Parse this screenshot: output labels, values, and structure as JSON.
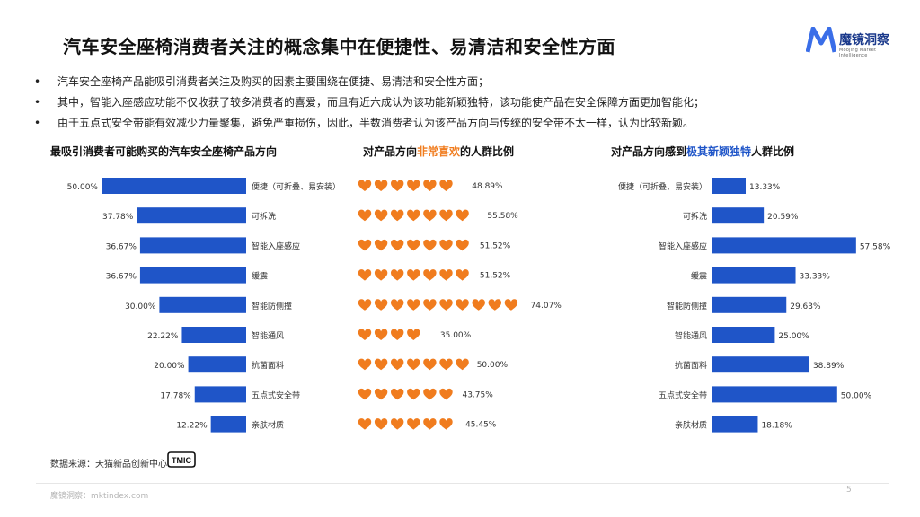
{
  "title": "汽车安全座椅消费者关注的概念集中在便捷性、易清洁和安全性方面",
  "logo": {
    "brand": "魔镜洞察",
    "sub": "Moojing Market Intelligence"
  },
  "bullets": [
    "汽车安全座椅产品能吸引消费者关注及购买的因素主要围绕在便捷、易清洁和安全性方面；",
    "其中，智能入座感应功能不仅收获了较多消费者的喜爱，而且有近六成认为该功能新颖独特，该功能使产品在安全保障方面更加智能化；",
    "由于五点式安全带能有效减少力量聚集，避免严重损伤，因此，半数消费者认为该产品方向与传统的安全带不太一样，认为比较新颖。"
  ],
  "bullet_marker": "•",
  "colors": {
    "bar": "#1f55c8",
    "heart": "#f07c1e",
    "brand": "#1b3a8c"
  },
  "chart_data": [
    {
      "type": "bar",
      "orientation": "horizontal",
      "title_parts": [
        "最吸引消费者可能购买的汽车安全座椅产品方向"
      ],
      "categories": [
        "便捷（可折叠、易安装）",
        "可拆洗",
        "智能入座感应",
        "缓震",
        "智能防侧撞",
        "智能通风",
        "抗菌面料",
        "五点式安全带",
        "亲肤材质"
      ],
      "values": [
        50.0,
        37.78,
        36.67,
        36.67,
        30.0,
        22.22,
        20.0,
        17.78,
        12.22
      ],
      "value_labels": [
        "50.00%",
        "37.78%",
        "36.67%",
        "36.67%",
        "30.00%",
        "22.22%",
        "20.00%",
        "17.78%",
        "12.22%"
      ],
      "xlim": [
        0,
        50
      ]
    },
    {
      "type": "bar",
      "style": "pictograph-hearts",
      "title_parts": [
        "对产品方向",
        "非常喜欢",
        "的人群比例"
      ],
      "categories": [
        "便捷（可折叠、易安装）",
        "可拆洗",
        "智能入座感应",
        "缓震",
        "智能防侧撞",
        "智能通风",
        "抗菌面料",
        "五点式安全带",
        "亲肤材质"
      ],
      "values": [
        48.89,
        55.58,
        51.52,
        51.52,
        74.07,
        35.0,
        50.0,
        43.75,
        45.45
      ],
      "value_labels": [
        "48.89%",
        "55.58%",
        "51.52%",
        "51.52%",
        "74.07%",
        "35.00%",
        "50.00%",
        "43.75%",
        "45.45%"
      ]
    },
    {
      "type": "bar",
      "orientation": "horizontal",
      "title_parts": [
        "对产品方向感到",
        "极其新颖独特",
        "人群比例"
      ],
      "categories": [
        "便捷（可折叠、易安装）",
        "可拆洗",
        "智能入座感应",
        "缓震",
        "智能防侧撞",
        "智能通风",
        "抗菌面料",
        "五点式安全带",
        "亲肤材质"
      ],
      "values": [
        13.33,
        20.59,
        57.58,
        33.33,
        29.63,
        25.0,
        38.89,
        50.0,
        18.18
      ],
      "value_labels": [
        "13.33%",
        "20.59%",
        "57.58%",
        "33.33%",
        "29.63%",
        "25.00%",
        "38.89%",
        "50.00%",
        "18.18%"
      ]
    }
  ],
  "source": "数据来源：天猫新品创新中心",
  "tmic": "TMIC",
  "footer": "魔镜洞察：mktindex.com",
  "page_number": "5"
}
